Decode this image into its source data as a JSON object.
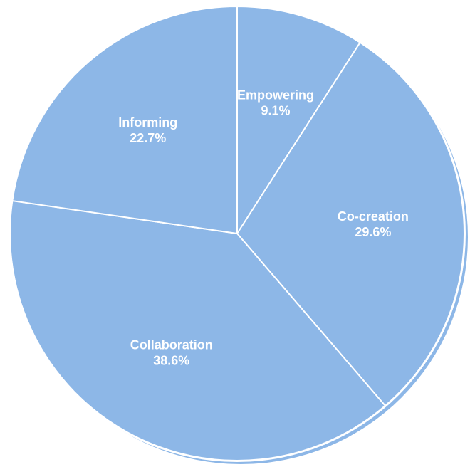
{
  "colors": {
    "slice": "#8db7e7",
    "slice_edge": "#ffffff",
    "shadow": "#8db7e7",
    "label": "#ffffff",
    "background": "#ffffff"
  },
  "chart_data": {
    "type": "pie",
    "start_angle_deg": 0,
    "direction": "clockwise",
    "slices": [
      {
        "label": "Empowering",
        "value": 9.1,
        "value_label": "9.1%"
      },
      {
        "label": "Co-creation",
        "value": 29.6,
        "value_label": "29.6%"
      },
      {
        "label": "Collaboration",
        "value": 38.6,
        "value_label": "38.6%"
      },
      {
        "label": "Informing",
        "value": 22.7,
        "value_label": "22.7%"
      }
    ]
  }
}
